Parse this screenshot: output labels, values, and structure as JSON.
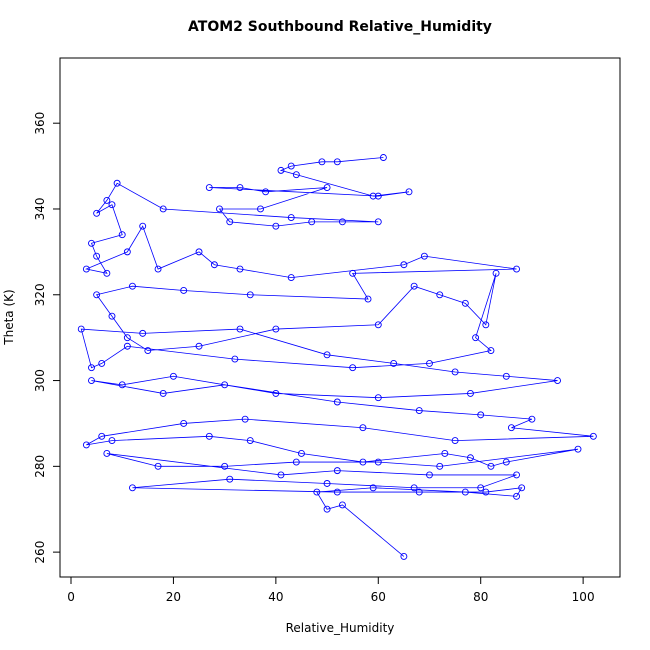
{
  "chart_data": {
    "type": "line",
    "marker": "circle",
    "title": "ATOM2 Southbound Relative_Humidity",
    "x_label": "Relative_Humidity",
    "y_label": "Theta (K)",
    "xlim": [
      -2.15,
      107.2
    ],
    "ylim": [
      254.2,
      375.2
    ],
    "xticks": [
      0,
      20,
      40,
      60,
      80,
      100
    ],
    "yticks": [
      260,
      280,
      300,
      320,
      340,
      360
    ],
    "x": [
      61,
      52,
      49,
      43,
      41,
      44,
      59,
      66,
      60,
      27,
      33,
      38,
      50,
      37,
      29,
      31,
      40,
      47,
      53,
      60,
      43,
      18,
      9,
      7,
      5,
      8,
      10,
      4,
      5,
      7,
      3,
      11,
      14,
      17,
      25,
      28,
      33,
      43,
      65,
      69,
      87,
      55,
      58,
      35,
      22,
      12,
      5,
      8,
      11,
      15,
      25,
      40,
      60,
      67,
      72,
      77,
      81,
      83,
      79,
      82,
      70,
      55,
      32,
      11,
      6,
      4,
      2,
      14,
      33,
      50,
      63,
      75,
      85,
      95,
      78,
      60,
      40,
      20,
      10,
      4,
      18,
      30,
      52,
      68,
      80,
      90,
      86,
      102,
      75,
      57,
      34,
      22,
      6,
      3,
      8,
      27,
      35,
      45,
      57,
      73,
      78,
      82,
      85,
      99,
      72,
      60,
      44,
      30,
      17,
      7,
      41,
      52,
      70,
      87,
      80,
      67,
      50,
      31,
      12,
      52,
      68,
      81,
      88,
      87,
      77,
      59,
      48,
      50,
      53,
      65
    ],
    "series": [
      {
        "color": "#0000ff",
        "values": [
          352,
          351,
          351,
          350,
          349,
          348,
          343,
          344,
          343,
          345,
          345,
          344,
          345,
          340,
          340,
          337,
          336,
          337,
          337,
          337,
          338,
          340,
          346,
          342,
          339,
          341,
          334,
          332,
          329,
          325,
          326,
          330,
          336,
          326,
          330,
          327,
          326,
          324,
          327,
          329,
          326,
          325,
          319,
          320,
          321,
          322,
          320,
          315,
          310,
          307,
          308,
          312,
          313,
          322,
          320,
          318,
          313,
          325,
          310,
          307,
          304,
          303,
          305,
          308,
          304,
          303,
          312,
          311,
          312,
          306,
          304,
          302,
          301,
          300,
          297,
          296,
          297,
          301,
          299,
          300,
          297,
          299,
          295,
          293,
          292,
          291,
          289,
          287,
          286,
          289,
          291,
          290,
          287,
          285,
          286,
          287,
          286,
          283,
          281,
          283,
          282,
          280,
          281,
          284,
          280,
          281,
          281,
          280,
          280,
          283,
          278,
          279,
          278,
          278,
          275,
          275,
          276,
          277,
          275,
          274,
          274,
          274,
          275,
          273,
          274,
          275,
          274,
          270,
          271,
          259
        ]
      }
    ]
  }
}
